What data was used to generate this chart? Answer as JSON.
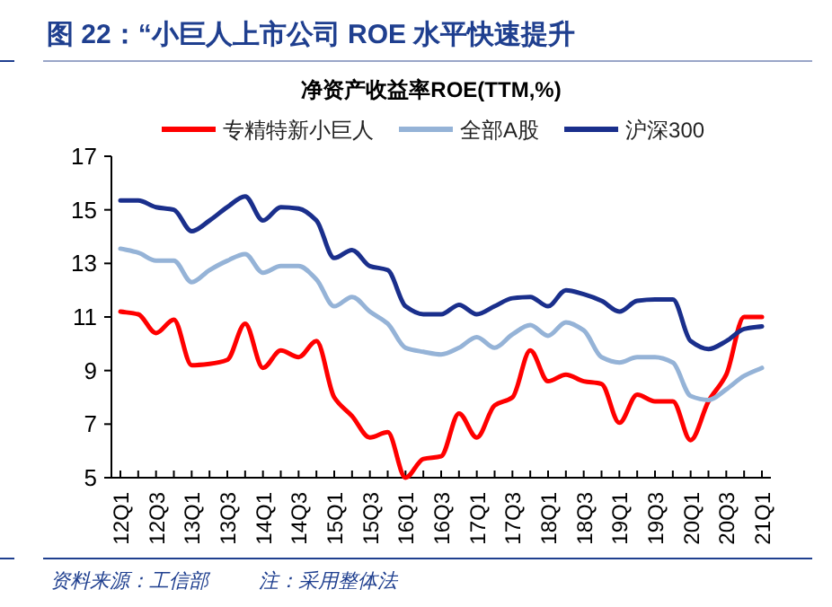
{
  "chart_data": {
    "type": "line",
    "title": "图 22：“小巨人上市公司 ROE 水平快速提升",
    "subtitle": "净资产收益率ROE(TTM,%)",
    "categories": [
      "12Q1",
      null,
      "12Q3",
      null,
      "13Q1",
      null,
      "13Q3",
      null,
      "14Q1",
      null,
      "14Q3",
      null,
      "15Q1",
      null,
      "15Q3",
      null,
      "16Q1",
      null,
      "16Q3",
      null,
      "17Q1",
      null,
      "17Q3",
      null,
      "18Q1",
      null,
      "18Q3",
      null,
      "19Q1",
      null,
      "19Q3",
      null,
      "20Q1",
      null,
      "20Q3",
      null,
      "21Q1"
    ],
    "series": [
      {
        "name": "专精特新小巨人",
        "color": "#ff0000",
        "values": [
          11.2,
          11.1,
          10.4,
          10.9,
          9.2,
          9.25,
          9.4,
          10.75,
          9.1,
          9.75,
          9.5,
          10.1,
          8.0,
          7.3,
          6.5,
          6.7,
          5.0,
          5.7,
          5.8,
          7.4,
          6.5,
          7.7,
          8.0,
          9.75,
          8.6,
          8.85,
          8.6,
          8.5,
          7.05,
          8.1,
          7.85,
          7.85,
          6.4,
          7.85,
          8.85,
          11.0,
          11.0
        ]
      },
      {
        "name": "全部A股",
        "color": "#95b3d7",
        "values": [
          13.55,
          13.4,
          13.1,
          13.1,
          12.3,
          12.75,
          13.1,
          13.35,
          12.65,
          12.9,
          12.9,
          12.4,
          11.4,
          11.75,
          11.2,
          10.75,
          9.85,
          9.7,
          9.6,
          9.85,
          10.25,
          9.85,
          10.35,
          10.7,
          10.3,
          10.8,
          10.5,
          9.5,
          9.3,
          9.5,
          9.5,
          9.3,
          8.05,
          7.9,
          8.3,
          8.8,
          9.1
        ]
      },
      {
        "name": "沪深300",
        "color": "#1a2f8c",
        "values": [
          15.35,
          15.35,
          15.1,
          15.0,
          14.2,
          14.6,
          15.1,
          15.5,
          14.6,
          15.1,
          15.05,
          14.6,
          13.2,
          13.5,
          12.9,
          12.75,
          11.4,
          11.1,
          11.1,
          11.45,
          11.1,
          11.4,
          11.7,
          11.75,
          11.4,
          12.0,
          11.85,
          11.6,
          11.2,
          11.6,
          11.65,
          11.65,
          10.1,
          9.8,
          10.1,
          10.55,
          10.65
        ]
      }
    ],
    "ylim": [
      5,
      17
    ],
    "yticks": [
      5,
      7,
      9,
      11,
      13,
      15,
      17
    ],
    "legend": "top",
    "grid": false,
    "annotations": [
      "资料来源：工信部",
      "注：采用整体法"
    ]
  }
}
